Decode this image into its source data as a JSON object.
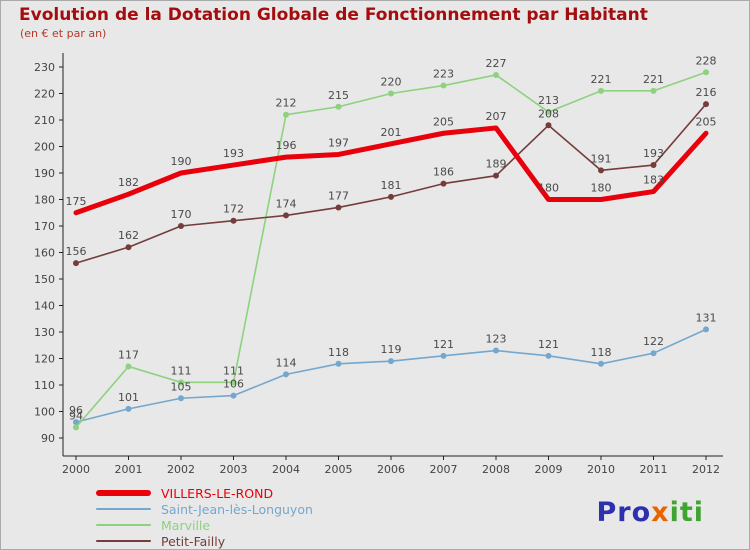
{
  "title": "Evolution de la Dotation Globale de Fonctionnement par Habitant",
  "subtitle": "(en € et par an)",
  "colors": {
    "background": "#e8e8e8",
    "title": "#a30d0d",
    "axis": "#222222",
    "data_label": "#4a4a4a"
  },
  "chart_data": {
    "type": "line",
    "x": [
      2000,
      2001,
      2002,
      2003,
      2004,
      2005,
      2006,
      2007,
      2008,
      2009,
      2010,
      2011,
      2012
    ],
    "series": [
      {
        "name": "VILLERS-LE-ROND",
        "color": "#e8000b",
        "width": 5,
        "values": [
          175,
          182,
          190,
          193,
          196,
          197,
          201,
          205,
          207,
          180,
          180,
          183,
          205
        ]
      },
      {
        "name": "Saint-Jean-lès-Longuyon",
        "color": "#74a7ce",
        "width": 1.6,
        "values": [
          96,
          101,
          105,
          106,
          114,
          118,
          119,
          121,
          123,
          121,
          118,
          122,
          131
        ]
      },
      {
        "name": "Marville",
        "color": "#8ed17e",
        "width": 1.6,
        "values": [
          94,
          117,
          111,
          111,
          212,
          215,
          220,
          223,
          227,
          213,
          221,
          221,
          228
        ]
      },
      {
        "name": "Petit-Failly",
        "color": "#743d3b",
        "width": 1.6,
        "values": [
          156,
          162,
          170,
          172,
          174,
          177,
          181,
          186,
          189,
          208,
          191,
          193,
          216
        ]
      }
    ],
    "ylim": [
      90,
      230
    ],
    "ytick_step": 10,
    "grid": false,
    "legend_position": "bottom-left"
  },
  "logo": {
    "segments": [
      {
        "text": "Pro",
        "color": "#2d31b0"
      },
      {
        "text": "x",
        "color": "#e86400"
      },
      {
        "text": "iti",
        "color": "#3fa431"
      }
    ]
  }
}
